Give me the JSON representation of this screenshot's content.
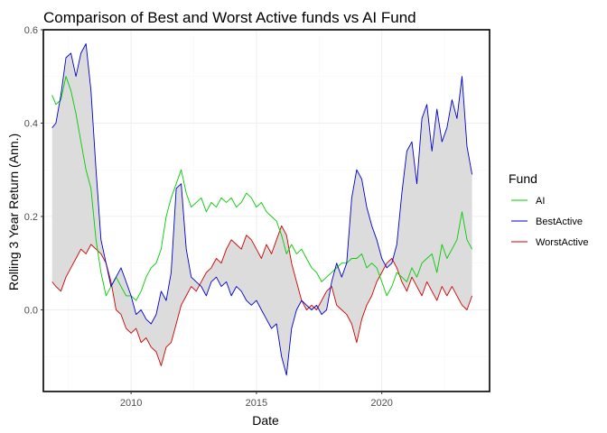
{
  "chart_data": {
    "type": "line",
    "title": "Comparison of Best and Worst Active funds vs AI Fund",
    "xlabel": "Date",
    "ylabel": "Rolling 3 Year Return (Ann.)",
    "xlim": [
      2006.5,
      2024.3
    ],
    "ylim": [
      -0.175,
      0.6
    ],
    "x_ticks": [
      2010,
      2015,
      2020
    ],
    "x_tick_labels": [
      "2010",
      "2015",
      "2020"
    ],
    "y_ticks": [
      0.0,
      0.2,
      0.4,
      0.6
    ],
    "y_tick_labels": [
      "0.0",
      "0.2",
      "0.4",
      "0.6"
    ],
    "grid": true,
    "ribbon": {
      "between": [
        "BestActive",
        "WorstActive"
      ],
      "color": "#dcdcdc"
    },
    "legend": {
      "title": "Fund",
      "position": "right"
    },
    "series": [
      {
        "name": "AI",
        "color": "#00cc00",
        "x": [
          2006.85,
          2007.0,
          2007.2,
          2007.4,
          2007.6,
          2007.8,
          2008.0,
          2008.2,
          2008.4,
          2008.6,
          2008.8,
          2009.0,
          2009.2,
          2009.4,
          2009.6,
          2009.8,
          2010.0,
          2010.2,
          2010.4,
          2010.6,
          2010.8,
          2011.0,
          2011.2,
          2011.4,
          2011.6,
          2011.8,
          2012.0,
          2012.2,
          2012.4,
          2012.6,
          2012.8,
          2013.0,
          2013.2,
          2013.4,
          2013.6,
          2013.8,
          2014.0,
          2014.2,
          2014.4,
          2014.6,
          2014.8,
          2015.0,
          2015.2,
          2015.4,
          2015.6,
          2015.8,
          2016.0,
          2016.2,
          2016.4,
          2016.6,
          2016.8,
          2017.0,
          2017.2,
          2017.4,
          2017.6,
          2017.8,
          2018.0,
          2018.2,
          2018.4,
          2018.6,
          2018.8,
          2019.0,
          2019.2,
          2019.4,
          2019.6,
          2019.8,
          2020.0,
          2020.2,
          2020.4,
          2020.6,
          2020.8,
          2021.0,
          2021.2,
          2021.4,
          2021.6,
          2021.8,
          2022.0,
          2022.2,
          2022.4,
          2022.6,
          2022.8,
          2023.0,
          2023.2,
          2023.4,
          2023.6
        ],
        "values": [
          0.46,
          0.44,
          0.45,
          0.5,
          0.47,
          0.42,
          0.36,
          0.3,
          0.26,
          0.15,
          0.08,
          0.03,
          0.05,
          0.07,
          0.05,
          0.03,
          0.03,
          0.02,
          0.04,
          0.07,
          0.09,
          0.1,
          0.13,
          0.2,
          0.24,
          0.27,
          0.3,
          0.25,
          0.22,
          0.23,
          0.24,
          0.21,
          0.23,
          0.22,
          0.24,
          0.23,
          0.24,
          0.22,
          0.23,
          0.25,
          0.24,
          0.22,
          0.23,
          0.21,
          0.2,
          0.19,
          0.16,
          0.12,
          0.14,
          0.12,
          0.13,
          0.11,
          0.09,
          0.08,
          0.06,
          0.07,
          0.08,
          0.09,
          0.1,
          0.1,
          0.11,
          0.11,
          0.12,
          0.09,
          0.1,
          0.09,
          0.06,
          0.03,
          0.05,
          0.08,
          0.07,
          0.06,
          0.09,
          0.07,
          0.1,
          0.11,
          0.12,
          0.08,
          0.14,
          0.11,
          0.13,
          0.15,
          0.21,
          0.15,
          0.13
        ]
      },
      {
        "name": "BestActive",
        "color": "#0000cc",
        "x": [
          2006.85,
          2007.0,
          2007.2,
          2007.4,
          2007.6,
          2007.8,
          2008.0,
          2008.2,
          2008.4,
          2008.6,
          2008.8,
          2009.0,
          2009.2,
          2009.4,
          2009.6,
          2009.8,
          2010.0,
          2010.2,
          2010.4,
          2010.6,
          2010.8,
          2011.0,
          2011.2,
          2011.4,
          2011.6,
          2011.8,
          2012.0,
          2012.2,
          2012.4,
          2012.6,
          2012.8,
          2013.0,
          2013.2,
          2013.4,
          2013.6,
          2013.8,
          2014.0,
          2014.2,
          2014.4,
          2014.6,
          2014.8,
          2015.0,
          2015.2,
          2015.4,
          2015.6,
          2015.8,
          2016.0,
          2016.2,
          2016.4,
          2016.6,
          2016.8,
          2017.0,
          2017.2,
          2017.4,
          2017.6,
          2017.8,
          2018.0,
          2018.2,
          2018.4,
          2018.6,
          2018.8,
          2019.0,
          2019.2,
          2019.4,
          2019.6,
          2019.8,
          2020.0,
          2020.2,
          2020.4,
          2020.6,
          2020.8,
          2021.0,
          2021.2,
          2021.4,
          2021.6,
          2021.8,
          2022.0,
          2022.2,
          2022.4,
          2022.6,
          2022.8,
          2023.0,
          2023.2,
          2023.4,
          2023.6
        ],
        "values": [
          0.39,
          0.4,
          0.46,
          0.54,
          0.55,
          0.5,
          0.55,
          0.57,
          0.47,
          0.3,
          0.15,
          0.1,
          0.05,
          0.07,
          0.09,
          0.06,
          0.03,
          -0.01,
          0.0,
          -0.02,
          -0.03,
          -0.01,
          0.04,
          0.02,
          0.08,
          0.26,
          0.27,
          0.13,
          0.07,
          0.06,
          0.05,
          0.03,
          0.06,
          0.07,
          0.05,
          0.06,
          0.03,
          0.05,
          0.04,
          0.02,
          0.01,
          0.02,
          0.0,
          -0.02,
          -0.04,
          -0.03,
          -0.1,
          -0.14,
          -0.04,
          0.0,
          0.02,
          0.01,
          0.0,
          0.01,
          -0.01,
          0.0,
          0.06,
          0.1,
          0.07,
          0.1,
          0.24,
          0.3,
          0.28,
          0.22,
          0.18,
          0.15,
          0.11,
          0.09,
          0.1,
          0.14,
          0.25,
          0.34,
          0.36,
          0.27,
          0.41,
          0.44,
          0.34,
          0.43,
          0.36,
          0.39,
          0.45,
          0.41,
          0.5,
          0.35,
          0.29
        ]
      },
      {
        "name": "WorstActive",
        "color": "#cc0000",
        "x": [
          2006.85,
          2007.0,
          2007.2,
          2007.4,
          2007.6,
          2007.8,
          2008.0,
          2008.2,
          2008.4,
          2008.6,
          2008.8,
          2009.0,
          2009.2,
          2009.4,
          2009.6,
          2009.8,
          2010.0,
          2010.2,
          2010.4,
          2010.6,
          2010.8,
          2011.0,
          2011.2,
          2011.4,
          2011.6,
          2011.8,
          2012.0,
          2012.2,
          2012.4,
          2012.6,
          2012.8,
          2013.0,
          2013.2,
          2013.4,
          2013.6,
          2013.8,
          2014.0,
          2014.2,
          2014.4,
          2014.6,
          2014.8,
          2015.0,
          2015.2,
          2015.4,
          2015.6,
          2015.8,
          2016.0,
          2016.2,
          2016.4,
          2016.6,
          2016.8,
          2017.0,
          2017.2,
          2017.4,
          2017.6,
          2017.8,
          2018.0,
          2018.2,
          2018.4,
          2018.6,
          2018.8,
          2019.0,
          2019.2,
          2019.4,
          2019.6,
          2019.8,
          2020.0,
          2020.2,
          2020.4,
          2020.6,
          2020.8,
          2021.0,
          2021.2,
          2021.4,
          2021.6,
          2021.8,
          2022.0,
          2022.2,
          2022.4,
          2022.6,
          2022.8,
          2023.0,
          2023.2,
          2023.4,
          2023.6
        ],
        "values": [
          0.06,
          0.05,
          0.04,
          0.07,
          0.09,
          0.11,
          0.13,
          0.12,
          0.14,
          0.13,
          0.12,
          0.1,
          0.06,
          0.0,
          -0.01,
          -0.04,
          -0.05,
          -0.04,
          -0.07,
          -0.06,
          -0.08,
          -0.09,
          -0.12,
          -0.08,
          -0.07,
          -0.03,
          0.01,
          0.03,
          0.05,
          0.04,
          0.06,
          0.08,
          0.09,
          0.11,
          0.1,
          0.13,
          0.15,
          0.14,
          0.13,
          0.16,
          0.15,
          0.13,
          0.11,
          0.14,
          0.12,
          0.15,
          0.18,
          0.16,
          0.1,
          0.06,
          0.02,
          0.0,
          0.01,
          0.0,
          0.02,
          0.04,
          0.05,
          0.01,
          0.0,
          -0.01,
          -0.03,
          -0.07,
          -0.02,
          0.01,
          0.03,
          0.06,
          0.08,
          0.1,
          0.11,
          0.09,
          0.06,
          0.04,
          0.07,
          0.05,
          0.03,
          0.06,
          0.04,
          0.02,
          0.05,
          0.03,
          0.05,
          0.03,
          0.01,
          0.0,
          0.03
        ]
      }
    ]
  }
}
